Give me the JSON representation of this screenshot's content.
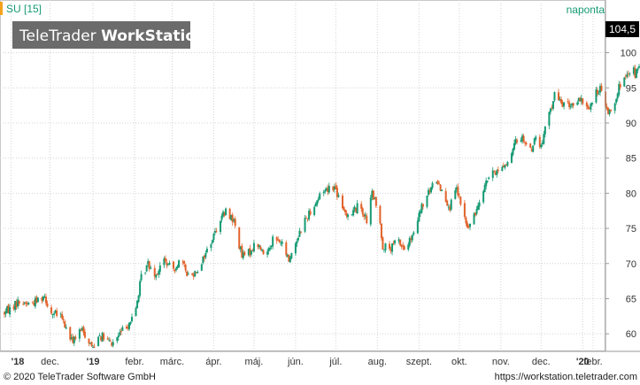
{
  "header": {
    "symbol_label": "SU [15]",
    "interval_label": "naponta",
    "watermark_light": "TeleTrader ",
    "watermark_bold": "WorkStation",
    "last_price_label": "104,5"
  },
  "footer": {
    "copyright": "© 2020 TeleTrader Software GmbH",
    "url": "https://workstation.teletrader.com"
  },
  "colors": {
    "up": "#159a73",
    "down": "#e2622a",
    "accent": "#f5a31c",
    "grid": "#d4d4d4",
    "price_box_bg": "#000000",
    "price_box_text": "#ffffff",
    "watermark_bg": "#6b6b6b"
  },
  "chart_data": {
    "type": "candlestick",
    "y_axis": {
      "ticks": [
        60,
        65,
        70,
        75,
        80,
        85,
        90,
        95,
        100
      ],
      "labels": [
        "60",
        "65",
        "70",
        "75",
        "80",
        "85",
        "90",
        "95",
        "100"
      ],
      "range": [
        57.5,
        107.5
      ],
      "position": "right"
    },
    "x_axis": {
      "labels": [
        "'18",
        "dec.",
        "'19",
        "febr.",
        "márc.",
        "ápr.",
        "máj.",
        "jún.",
        "júl.",
        "aug.",
        "szept.",
        "okt.",
        "nov.",
        "dec.",
        "'20",
        "febr."
      ],
      "bold": [
        true,
        false,
        true,
        false,
        false,
        false,
        false,
        false,
        false,
        false,
        false,
        false,
        false,
        false,
        true,
        false
      ],
      "range_days": [
        0,
        444
      ],
      "label_days": [
        5,
        34,
        66,
        97,
        125,
        156,
        186,
        217,
        247,
        278,
        309,
        339,
        370,
        400,
        431,
        462
      ]
    },
    "grid": true,
    "last_value": 104.5,
    "series": [
      {
        "name": "SU",
        "anchors": [
          [
            0,
            63
          ],
          [
            10,
            64.5
          ],
          [
            20,
            64.3
          ],
          [
            30,
            65.5
          ],
          [
            34,
            63
          ],
          [
            42,
            62.5
          ],
          [
            50,
            59
          ],
          [
            58,
            60.5
          ],
          [
            66,
            58
          ],
          [
            70,
            60
          ],
          [
            80,
            58.5
          ],
          [
            90,
            61
          ],
          [
            97,
            62.5
          ],
          [
            102,
            68
          ],
          [
            107,
            70
          ],
          [
            113,
            68.5
          ],
          [
            119,
            70.5
          ],
          [
            125,
            69
          ],
          [
            131,
            70.5
          ],
          [
            138,
            68
          ],
          [
            145,
            69.5
          ],
          [
            150,
            71.5
          ],
          [
            156,
            74
          ],
          [
            161,
            76.5
          ],
          [
            166,
            77.5
          ],
          [
            171,
            76
          ],
          [
            177,
            71
          ],
          [
            182,
            71.5
          ],
          [
            188,
            73
          ],
          [
            194,
            71
          ],
          [
            200,
            73.5
          ],
          [
            206,
            73
          ],
          [
            212,
            70.5
          ],
          [
            217,
            73
          ],
          [
            222,
            75.5
          ],
          [
            228,
            77.5
          ],
          [
            233,
            79
          ],
          [
            238,
            80.5
          ],
          [
            245,
            81
          ],
          [
            247,
            80.5
          ],
          [
            252,
            77.5
          ],
          [
            258,
            77
          ],
          [
            265,
            78.5
          ],
          [
            270,
            76
          ],
          [
            274,
            80
          ],
          [
            279,
            77
          ],
          [
            282,
            72.5
          ],
          [
            288,
            72
          ],
          [
            293,
            73.5
          ],
          [
            298,
            72
          ],
          [
            305,
            74
          ],
          [
            310,
            77.5
          ],
          [
            316,
            80
          ],
          [
            322,
            82
          ],
          [
            327,
            80
          ],
          [
            332,
            78
          ],
          [
            337,
            80.5
          ],
          [
            340,
            78.5
          ],
          [
            345,
            75
          ],
          [
            350,
            76.5
          ],
          [
            355,
            80
          ],
          [
            360,
            82
          ],
          [
            366,
            83
          ],
          [
            372,
            84
          ],
          [
            377,
            84.5
          ],
          [
            381,
            87.5
          ],
          [
            386,
            88
          ],
          [
            392,
            86
          ],
          [
            396,
            88
          ],
          [
            400,
            86.5
          ],
          [
            403,
            89
          ],
          [
            407,
            92
          ],
          [
            410,
            94
          ],
          [
            414,
            93
          ],
          [
            420,
            92.5
          ],
          [
            427,
            93
          ],
          [
            432,
            93
          ],
          [
            436,
            92
          ],
          [
            440,
            94
          ],
          [
            444,
            95
          ],
          [
            448,
            92
          ],
          [
            452,
            91.5
          ],
          [
            456,
            94
          ],
          [
            460,
            96
          ],
          [
            465,
            96.5
          ],
          [
            469,
            97.5
          ],
          [
            470,
            97
          ],
          [
            473,
            97.8
          ],
          [
            474,
            102
          ],
          [
            476,
            104.5
          ]
        ]
      }
    ]
  }
}
